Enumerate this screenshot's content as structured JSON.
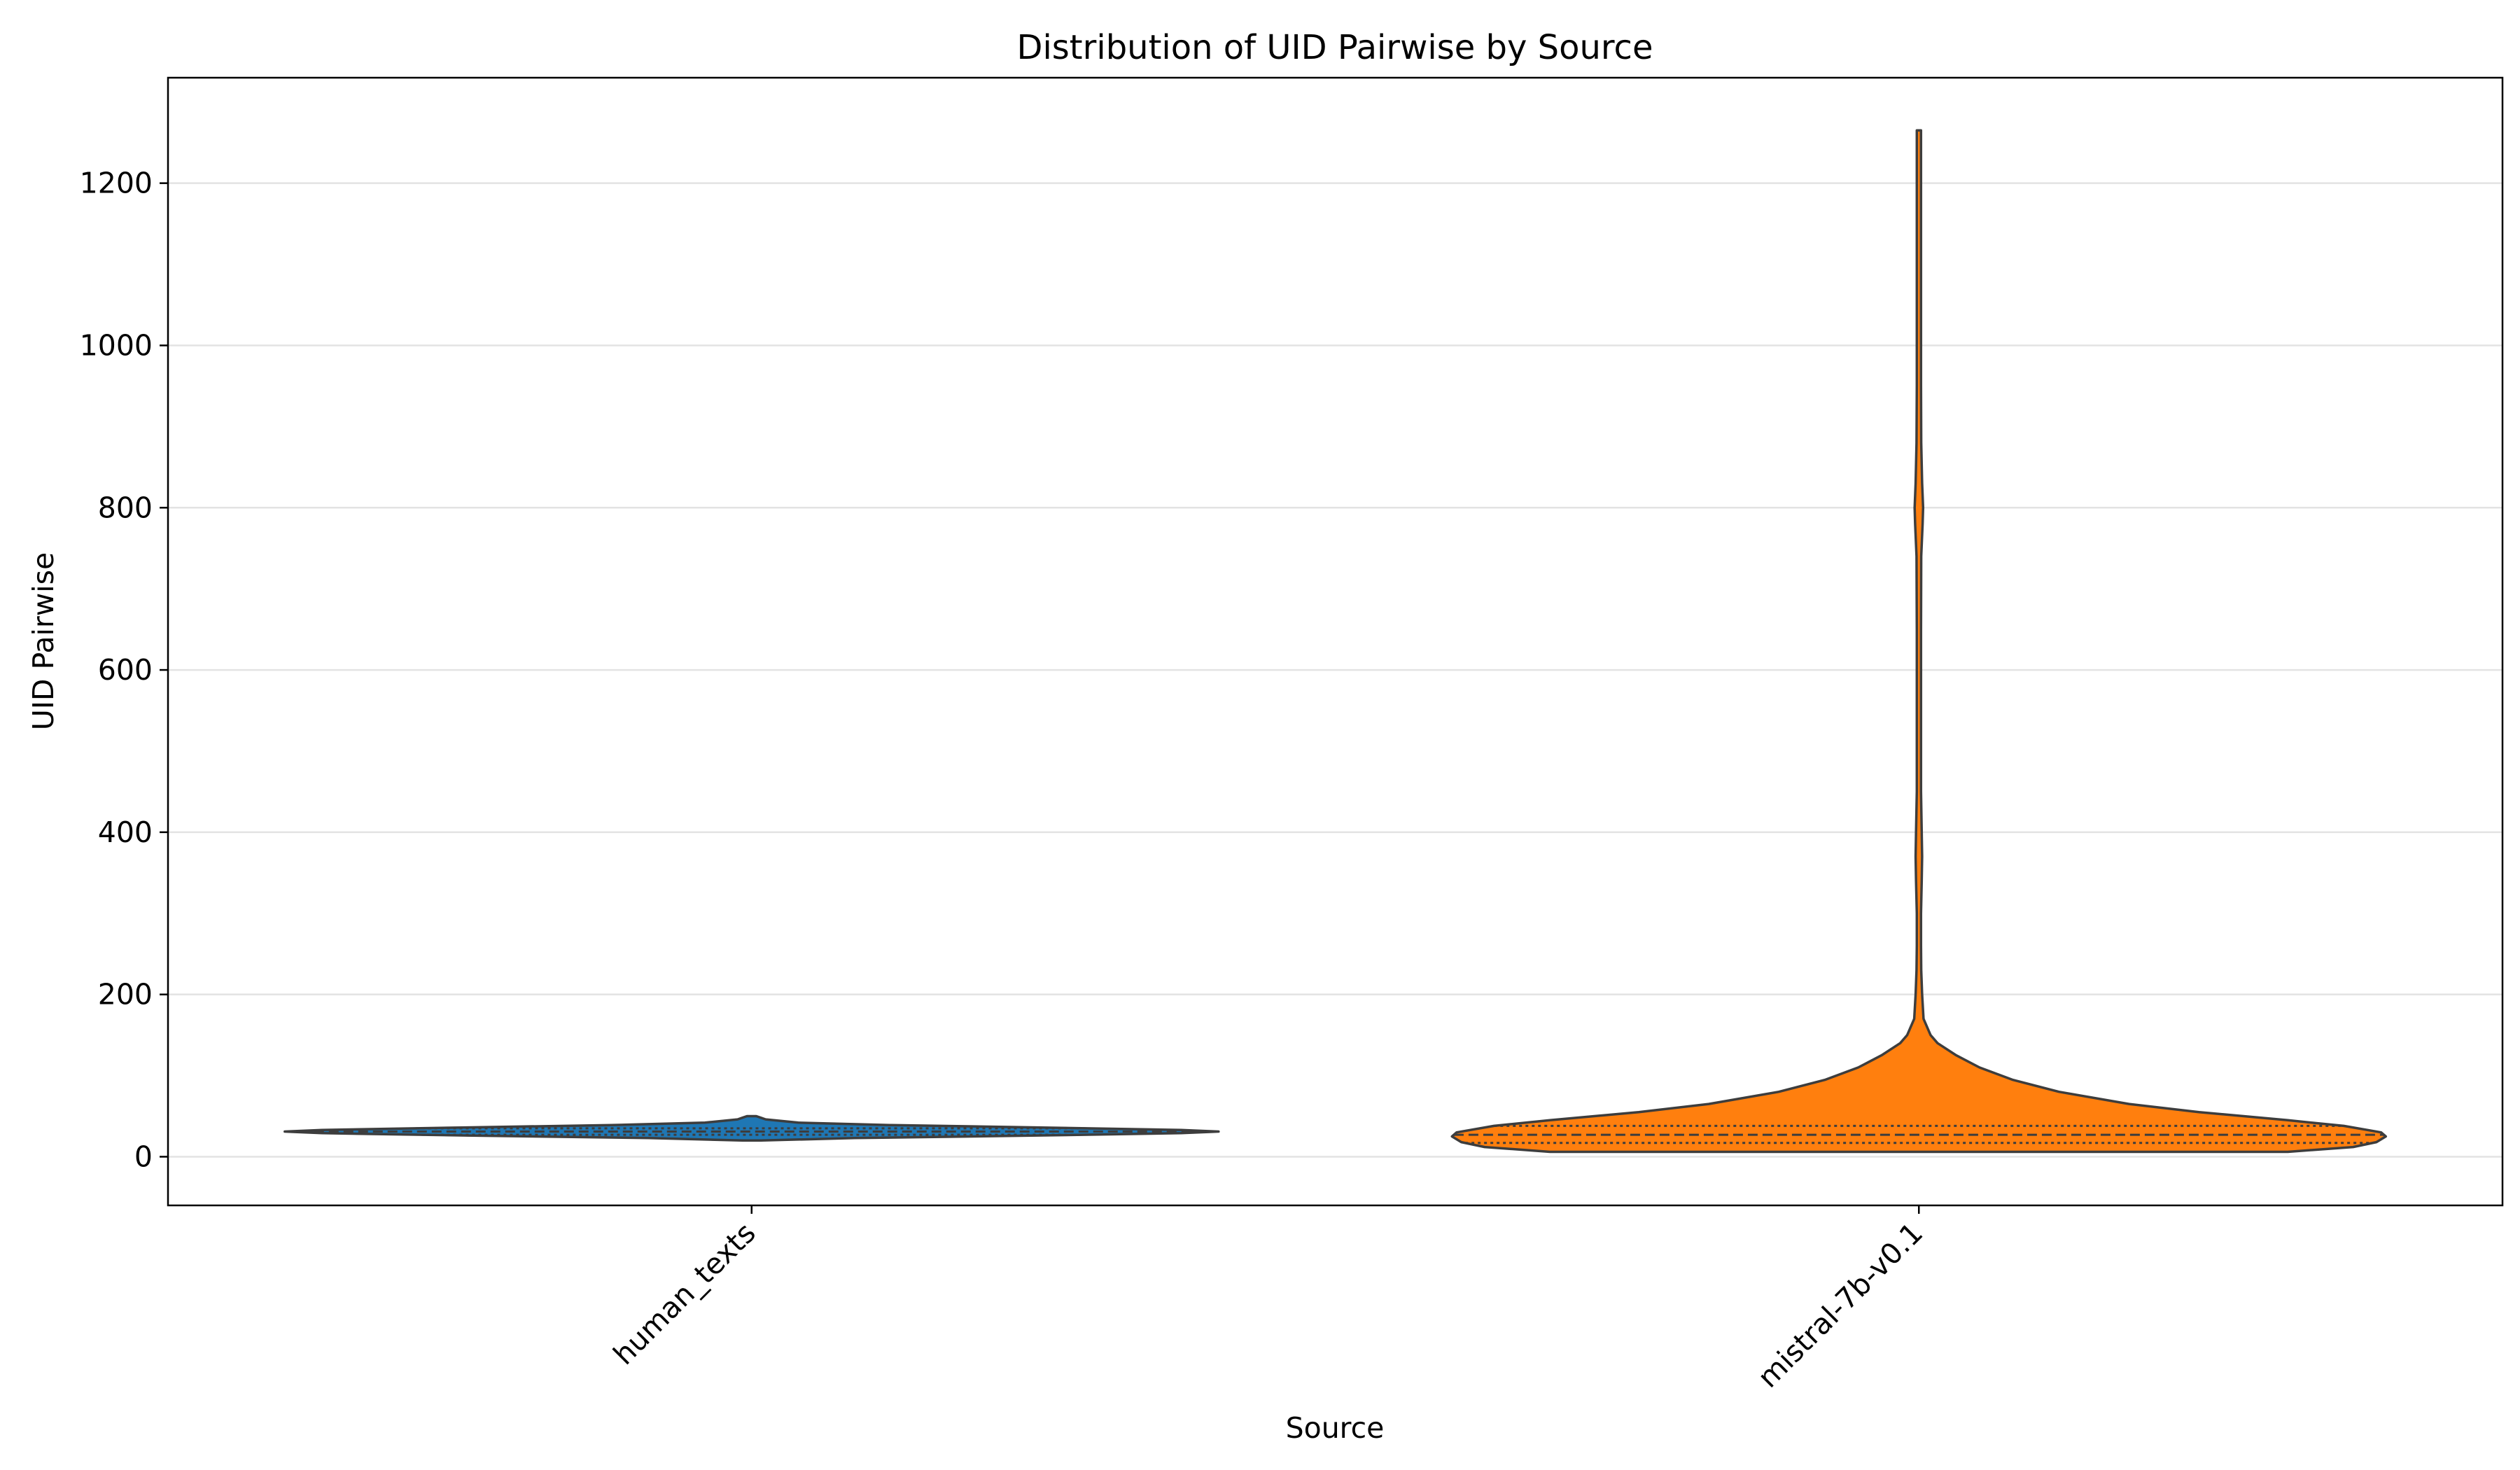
{
  "chart_data": {
    "type": "violin",
    "title": "Distribution of UID Pairwise by Source",
    "xlabel": "Source",
    "ylabel": "UID Pairwise",
    "ylim": [
      -60,
      1330
    ],
    "yticks": [
      0,
      200,
      400,
      600,
      800,
      1000,
      1200
    ],
    "grid": "horizontal",
    "legend": "none",
    "inner": "quartile",
    "categories": [
      "human_texts",
      "mistral-7b-v0.1"
    ],
    "series": [
      {
        "category": "human_texts",
        "color": "#1f77b4",
        "range": [
          20,
          50
        ],
        "quartiles": [
          27,
          31,
          35
        ],
        "profile": [
          [
            20,
            0.02
          ],
          [
            23,
            0.22
          ],
          [
            26,
            0.6
          ],
          [
            29,
            0.92
          ],
          [
            31,
            1.0
          ],
          [
            33,
            0.92
          ],
          [
            36,
            0.62
          ],
          [
            39,
            0.3
          ],
          [
            42,
            0.1
          ],
          [
            46,
            0.03
          ],
          [
            48,
            0.02
          ],
          [
            50,
            0.01
          ]
        ]
      },
      {
        "category": "mistral-7b-v0.1",
        "color": "#ff7f0e",
        "range": [
          6,
          1265
        ],
        "quartiles": [
          17,
          27,
          38
        ],
        "profile": [
          [
            6,
            0.79
          ],
          [
            12,
            0.93
          ],
          [
            18,
            0.98
          ],
          [
            25,
            1.0
          ],
          [
            30,
            0.99
          ],
          [
            38,
            0.91
          ],
          [
            45,
            0.79
          ],
          [
            55,
            0.6
          ],
          [
            65,
            0.45
          ],
          [
            80,
            0.3
          ],
          [
            95,
            0.2
          ],
          [
            110,
            0.13
          ],
          [
            125,
            0.08
          ],
          [
            140,
            0.04
          ],
          [
            150,
            0.025
          ],
          [
            170,
            0.01
          ],
          [
            200,
            0.007
          ],
          [
            230,
            0.005
          ],
          [
            260,
            0.004
          ],
          [
            300,
            0.004
          ],
          [
            340,
            0.006
          ],
          [
            370,
            0.007
          ],
          [
            400,
            0.006
          ],
          [
            450,
            0.004
          ],
          [
            550,
            0.004
          ],
          [
            650,
            0.004
          ],
          [
            740,
            0.005
          ],
          [
            780,
            0.008
          ],
          [
            800,
            0.009
          ],
          [
            830,
            0.007
          ],
          [
            880,
            0.005
          ],
          [
            950,
            0.004
          ],
          [
            1100,
            0.004
          ],
          [
            1200,
            0.004
          ],
          [
            1265,
            0.003
          ]
        ]
      }
    ]
  }
}
